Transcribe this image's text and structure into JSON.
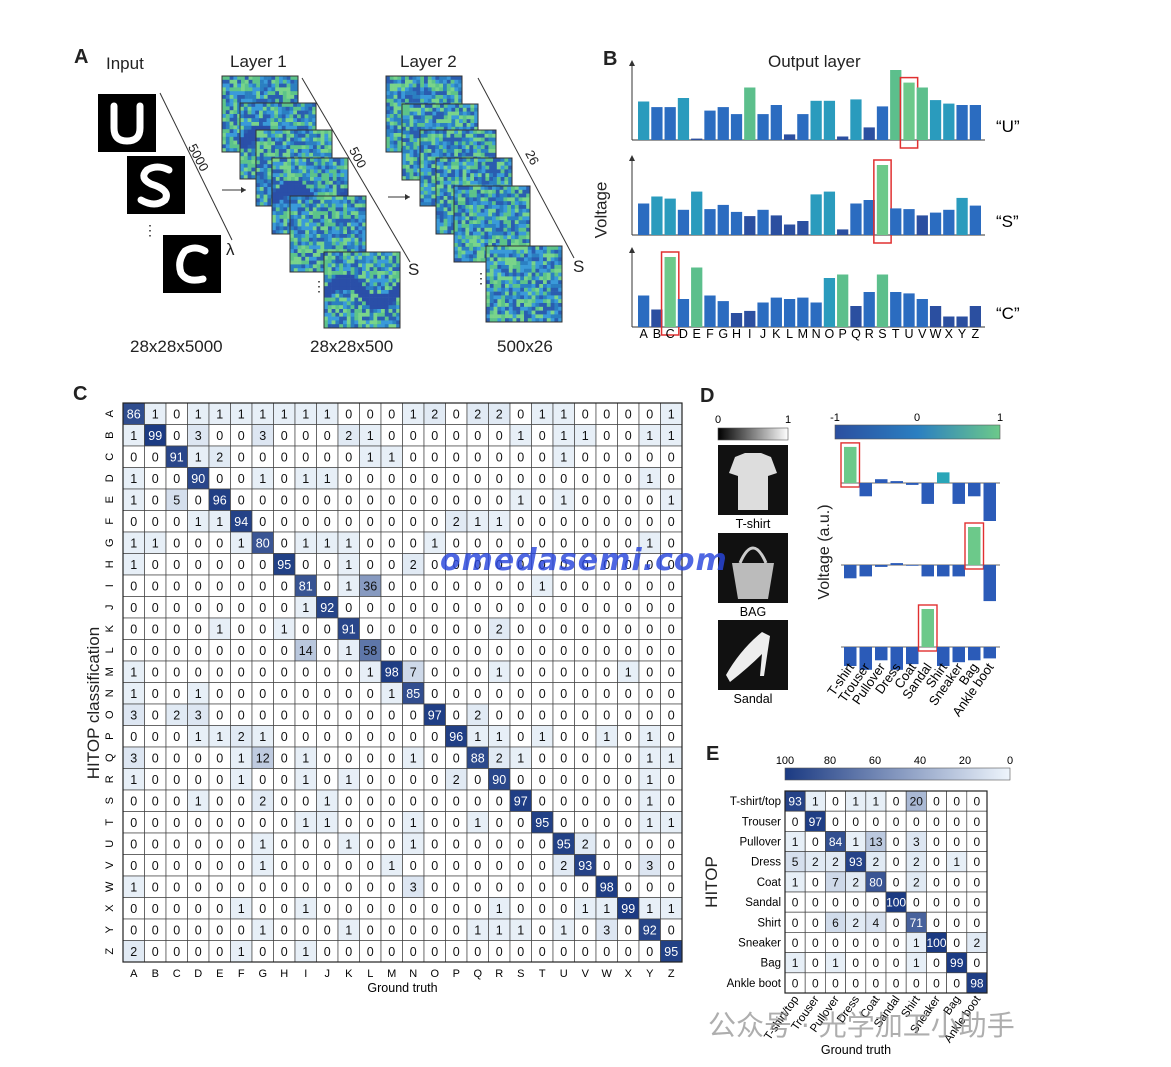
{
  "panelA": {
    "label": "A",
    "input_title": "Input",
    "layer1_title": "Layer 1",
    "layer2_title": "Layer 2",
    "arrow1_label": "5000",
    "arrow2_label": "500",
    "arrow3_label": "26",
    "lambda": "λ",
    "s1": "S",
    "s2": "S",
    "dims_input": "28x28x5000",
    "dims_layer1": "28x28x500",
    "dims_layer2": "500x26",
    "ellipsis": "⋮"
  },
  "panelB": {
    "label": "B",
    "title": "Output layer",
    "ylabel": "Voltage",
    "row_labels": [
      "“U”",
      "“S”",
      "“C”"
    ]
  },
  "panelC": {
    "label": "C",
    "ylabel": "HITOP classification",
    "xlabel": "Ground truth"
  },
  "panelD": {
    "label": "D",
    "gray_scale": [
      "0",
      "1"
    ],
    "color_scale": [
      "-1",
      "0",
      "1"
    ],
    "images": [
      "T-shirt",
      "BAG",
      "Sandal"
    ],
    "ylabel": "Voltage (a.u.)"
  },
  "panelE": {
    "label": "E",
    "scale_ticks": [
      "100",
      "80",
      "60",
      "40",
      "20",
      "0"
    ],
    "ylabel": "HITOP",
    "xlabel": "Ground truth"
  },
  "watermarks": {
    "main": "omedasemi.com",
    "footer": "公众号 · 光学加工小助手"
  },
  "chart_data": [
    {
      "type": "bar",
      "title": "Output layer",
      "ylabel": "Voltage",
      "categories": [
        "A",
        "B",
        "C",
        "D",
        "E",
        "F",
        "G",
        "H",
        "I",
        "J",
        "K",
        "L",
        "M",
        "N",
        "O",
        "P",
        "Q",
        "R",
        "S",
        "T",
        "U",
        "V",
        "W",
        "X",
        "Y",
        "Z"
      ],
      "series": [
        {
          "name": "“U”",
          "values": [
            0.55,
            0.47,
            0.47,
            0.6,
            0.02,
            0.42,
            0.47,
            0.37,
            0.75,
            0.37,
            0.5,
            0.08,
            0.37,
            0.56,
            0.56,
            0.05,
            0.58,
            0.18,
            0.48,
            1.0,
            0.82,
            0.75,
            0.57,
            0.52,
            0.5,
            0.5
          ],
          "highlight": "U"
        },
        {
          "name": "“S”",
          "values": [
            0.45,
            0.55,
            0.52,
            0.36,
            0.62,
            0.37,
            0.43,
            0.33,
            0.27,
            0.36,
            0.28,
            0.15,
            0.2,
            0.58,
            0.62,
            0.08,
            0.45,
            0.5,
            1.0,
            0.38,
            0.37,
            0.28,
            0.32,
            0.36,
            0.53,
            0.42
          ],
          "highlight": "S"
        },
        {
          "name": "“C”",
          "values": [
            0.45,
            0.25,
            1.0,
            0.4,
            0.85,
            0.45,
            0.37,
            0.2,
            0.23,
            0.35,
            0.42,
            0.4,
            0.42,
            0.35,
            0.7,
            0.75,
            0.3,
            0.5,
            0.75,
            0.5,
            0.48,
            0.4,
            0.3,
            0.15,
            0.15,
            0.3
          ],
          "highlight": "C"
        }
      ]
    },
    {
      "type": "heatmap",
      "ylabel": "HITOP classification",
      "xlabel": "Ground truth",
      "categories": [
        "A",
        "B",
        "C",
        "D",
        "E",
        "F",
        "G",
        "H",
        "I",
        "J",
        "K",
        "L",
        "M",
        "N",
        "O",
        "P",
        "Q",
        "R",
        "S",
        "T",
        "U",
        "V",
        "W",
        "X",
        "Y",
        "Z"
      ],
      "values": [
        [
          86,
          1,
          0,
          1,
          1,
          1,
          1,
          1,
          1,
          1,
          0,
          0,
          0,
          1,
          2,
          0,
          2,
          2,
          0,
          1,
          1,
          0,
          0,
          0,
          0,
          1
        ],
        [
          1,
          99,
          0,
          3,
          0,
          0,
          3,
          0,
          0,
          0,
          2,
          1,
          0,
          0,
          0,
          0,
          0,
          0,
          1,
          0,
          1,
          1,
          0,
          0,
          1,
          1
        ],
        [
          0,
          0,
          91,
          1,
          2,
          0,
          0,
          0,
          0,
          0,
          0,
          1,
          1,
          0,
          0,
          0,
          0,
          0,
          0,
          0,
          1,
          0,
          0,
          0,
          0,
          0
        ],
        [
          1,
          0,
          0,
          90,
          0,
          0,
          1,
          0,
          1,
          1,
          0,
          0,
          0,
          0,
          0,
          0,
          0,
          0,
          0,
          0,
          0,
          0,
          0,
          0,
          1,
          0
        ],
        [
          1,
          0,
          5,
          0,
          96,
          0,
          0,
          0,
          0,
          0,
          0,
          0,
          0,
          0,
          0,
          0,
          0,
          0,
          1,
          0,
          1,
          0,
          0,
          0,
          0,
          1
        ],
        [
          0,
          0,
          0,
          1,
          1,
          94,
          0,
          0,
          0,
          0,
          0,
          0,
          0,
          0,
          0,
          2,
          1,
          1,
          0,
          0,
          0,
          0,
          0,
          0,
          0,
          0
        ],
        [
          1,
          1,
          0,
          0,
          0,
          1,
          80,
          0,
          1,
          1,
          1,
          0,
          0,
          0,
          1,
          0,
          0,
          0,
          0,
          0,
          0,
          0,
          0,
          0,
          1,
          0
        ],
        [
          1,
          0,
          0,
          0,
          0,
          0,
          0,
          95,
          0,
          0,
          1,
          0,
          0,
          2,
          0,
          0,
          0,
          0,
          0,
          0,
          0,
          0,
          0,
          0,
          0,
          0
        ],
        [
          0,
          0,
          0,
          0,
          0,
          0,
          0,
          0,
          81,
          0,
          1,
          36,
          0,
          0,
          0,
          0,
          0,
          0,
          0,
          1,
          0,
          0,
          0,
          0,
          0,
          0
        ],
        [
          0,
          0,
          0,
          0,
          0,
          0,
          0,
          0,
          1,
          92,
          0,
          0,
          0,
          0,
          0,
          0,
          0,
          0,
          0,
          0,
          0,
          0,
          0,
          0,
          0,
          0
        ],
        [
          0,
          0,
          0,
          0,
          1,
          0,
          0,
          1,
          0,
          0,
          91,
          0,
          0,
          0,
          0,
          0,
          0,
          2,
          0,
          0,
          0,
          0,
          0,
          0,
          0,
          0
        ],
        [
          0,
          0,
          0,
          0,
          0,
          0,
          0,
          0,
          14,
          0,
          1,
          58,
          0,
          0,
          0,
          0,
          0,
          0,
          0,
          0,
          0,
          0,
          0,
          0,
          0,
          0
        ],
        [
          1,
          0,
          0,
          0,
          0,
          0,
          0,
          0,
          0,
          0,
          0,
          1,
          98,
          7,
          0,
          0,
          0,
          1,
          0,
          0,
          0,
          0,
          0,
          1,
          0,
          0
        ],
        [
          1,
          0,
          0,
          1,
          0,
          0,
          0,
          0,
          0,
          0,
          0,
          0,
          1,
          85,
          0,
          0,
          0,
          0,
          0,
          0,
          0,
          0,
          0,
          0,
          0,
          0
        ],
        [
          3,
          0,
          2,
          3,
          0,
          0,
          0,
          0,
          0,
          0,
          0,
          0,
          0,
          0,
          97,
          0,
          2,
          0,
          0,
          0,
          0,
          0,
          0,
          0,
          0,
          0
        ],
        [
          0,
          0,
          0,
          1,
          1,
          2,
          1,
          0,
          0,
          0,
          0,
          0,
          0,
          0,
          0,
          96,
          1,
          1,
          0,
          1,
          0,
          0,
          1,
          0,
          1,
          0
        ],
        [
          3,
          0,
          0,
          0,
          0,
          1,
          12,
          0,
          1,
          0,
          0,
          0,
          0,
          1,
          0,
          0,
          88,
          2,
          1,
          0,
          0,
          0,
          0,
          0,
          1,
          1
        ],
        [
          1,
          0,
          0,
          0,
          0,
          1,
          0,
          0,
          1,
          0,
          1,
          0,
          0,
          0,
          0,
          2,
          0,
          90,
          0,
          0,
          0,
          0,
          0,
          0,
          1,
          0
        ],
        [
          0,
          0,
          0,
          1,
          0,
          0,
          2,
          0,
          0,
          1,
          0,
          0,
          0,
          0,
          0,
          0,
          0,
          0,
          97,
          0,
          0,
          0,
          0,
          0,
          1,
          0
        ],
        [
          0,
          0,
          0,
          0,
          0,
          0,
          0,
          0,
          1,
          1,
          0,
          0,
          0,
          1,
          0,
          0,
          1,
          0,
          0,
          95,
          0,
          0,
          0,
          0,
          1,
          1
        ],
        [
          0,
          0,
          0,
          0,
          0,
          0,
          1,
          0,
          0,
          0,
          1,
          0,
          0,
          1,
          0,
          0,
          0,
          0,
          0,
          0,
          95,
          2,
          0,
          0,
          0,
          0
        ],
        [
          0,
          0,
          0,
          0,
          0,
          0,
          1,
          0,
          0,
          0,
          0,
          0,
          1,
          0,
          0,
          0,
          0,
          0,
          0,
          0,
          2,
          93,
          0,
          0,
          3,
          0
        ],
        [
          1,
          0,
          0,
          0,
          0,
          0,
          0,
          0,
          0,
          0,
          0,
          0,
          0,
          3,
          0,
          0,
          0,
          0,
          0,
          0,
          0,
          0,
          98,
          0,
          0,
          0
        ],
        [
          0,
          0,
          0,
          0,
          0,
          1,
          0,
          0,
          1,
          0,
          0,
          0,
          0,
          0,
          0,
          0,
          0,
          1,
          0,
          0,
          0,
          1,
          1,
          99,
          1,
          1
        ],
        [
          0,
          0,
          0,
          0,
          0,
          0,
          1,
          0,
          0,
          0,
          1,
          0,
          0,
          0,
          0,
          0,
          1,
          1,
          1,
          0,
          1,
          0,
          3,
          0,
          92,
          0
        ],
        [
          2,
          0,
          0,
          0,
          0,
          1,
          0,
          0,
          1,
          0,
          0,
          0,
          0,
          0,
          0,
          0,
          0,
          0,
          0,
          0,
          0,
          0,
          0,
          0,
          0,
          95
        ]
      ]
    },
    {
      "type": "bar",
      "ylabel": "Voltage (a.u.)",
      "categories": [
        "T-shirt",
        "Trouser",
        "Pullover",
        "Dress",
        "Coat",
        "Sandal",
        "Shirt",
        "Sneaker",
        "Bag",
        "Ankle boot"
      ],
      "ylim": [
        -1,
        1
      ],
      "series": [
        {
          "name": "T-shirt",
          "values": [
            0.95,
            -0.35,
            0.1,
            0.05,
            -0.05,
            -0.55,
            0.28,
            -0.55,
            -0.35,
            -1.0
          ],
          "highlight": "T-shirt"
        },
        {
          "name": "BAG",
          "values": [
            -0.35,
            -0.3,
            -0.05,
            0.05,
            -0.02,
            -0.3,
            -0.3,
            -0.3,
            1.0,
            -0.95
          ],
          "highlight": "Bag"
        },
        {
          "name": "Sandal",
          "values": [
            -0.5,
            -0.6,
            -0.35,
            -0.6,
            -0.45,
            1.0,
            -0.5,
            -0.4,
            -0.35,
            -0.3
          ],
          "highlight": "Sandal"
        }
      ]
    },
    {
      "type": "heatmap",
      "ylabel": "HITOP",
      "xlabel": "Ground truth",
      "categories": [
        "T-shirt/top",
        "Trouser",
        "Pullover",
        "Dress",
        "Coat",
        "Sandal",
        "Shirt",
        "Sneaker",
        "Bag",
        "Ankle boot"
      ],
      "values": [
        [
          93,
          1,
          0,
          1,
          1,
          0,
          20,
          0,
          0,
          0
        ],
        [
          0,
          97,
          0,
          0,
          0,
          0,
          0,
          0,
          0,
          0
        ],
        [
          1,
          0,
          84,
          1,
          13,
          0,
          3,
          0,
          0,
          0
        ],
        [
          5,
          2,
          2,
          93,
          2,
          0,
          2,
          0,
          1,
          0
        ],
        [
          1,
          0,
          7,
          2,
          80,
          0,
          2,
          0,
          0,
          0
        ],
        [
          0,
          0,
          0,
          0,
          0,
          100,
          0,
          0,
          0,
          0
        ],
        [
          0,
          0,
          6,
          2,
          4,
          0,
          71,
          0,
          0,
          0
        ],
        [
          0,
          0,
          0,
          0,
          0,
          0,
          1,
          100,
          0,
          2
        ],
        [
          1,
          0,
          1,
          0,
          0,
          0,
          1,
          0,
          99,
          0
        ],
        [
          0,
          0,
          0,
          0,
          0,
          0,
          0,
          0,
          0,
          98
        ]
      ]
    }
  ]
}
